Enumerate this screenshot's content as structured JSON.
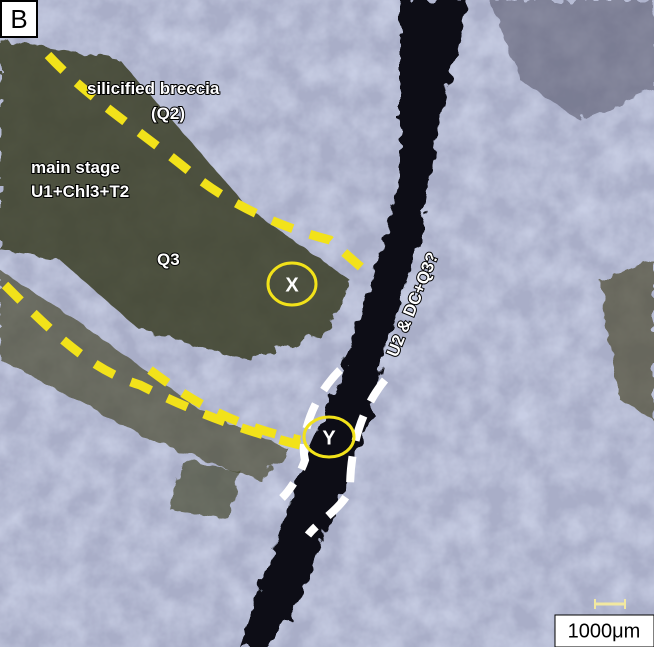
{
  "panel_label": "B",
  "annotations": {
    "silicified_breccia": [
      "silicified breccia",
      "(Q2)"
    ],
    "main_stage": [
      "main stage",
      "U1+Chl3+T2"
    ],
    "q3": "Q3",
    "point_x": "X",
    "point_y": "Y",
    "vein": "U2 & DC+Q3?"
  },
  "scale_bar": "1000μm"
}
